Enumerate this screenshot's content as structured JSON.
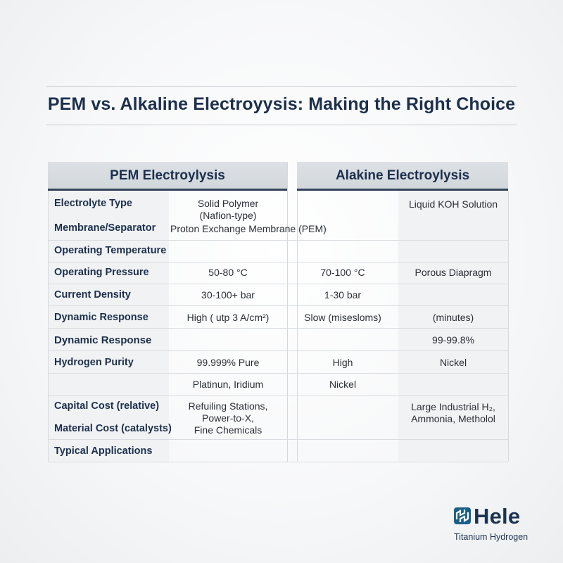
{
  "title": "PEM vs. Alkaline Electroyysis: Making the Right Choice",
  "headers": {
    "pem": "PEM Electroylysis",
    "alkaline": "Alakine Electroylysis"
  },
  "labels": [
    "Electrolyte Type",
    "Membrane/Separator",
    "Operating Temperature",
    "Operating Pressure",
    "Current Density",
    "Dynamic Response",
    "Dynamic Response",
    "Hydrogen Purity",
    "Capital Cost (relative)",
    "Material Cost (catalysts)",
    "Typical Applications"
  ],
  "cells": {
    "solid_polymer": "Solid Polymer",
    "nafion": "(Nafion-type)",
    "liquid_koh": "Liquid KOH Solution",
    "pem_membrane": "Proton Exchange Membrane (PEM)",
    "pem_temp": "50-80 °C",
    "alk_temp": "70-100 °C",
    "porous": "Porous Diapragm",
    "pem_pressure": "30-100+ bar",
    "alk_pressure": "1-30 bar",
    "pem_density": "High ( utp 3 A/cm²)",
    "alk_response": "Slow (misesloms)",
    "minutes": "(minutes)",
    "alk_purity": "99-99.8%",
    "pem_purity": "99.999% Pure",
    "high": "High",
    "nickel_right": "Nickel",
    "platinum": "Platinun, Iridium",
    "nickel_mid": "Nickel",
    "pem_app_1": "Refuiling Stations,",
    "pem_app_2": "Power-to-X,",
    "pem_app_3": "Fine Chemicals",
    "alk_app_1": "Large Industrial H₂,",
    "alk_app_2": "Ammonia, Metholol"
  },
  "logo": {
    "name": "Hele",
    "tagline": "Titanium Hydrogen",
    "color": "#1b5f86"
  }
}
